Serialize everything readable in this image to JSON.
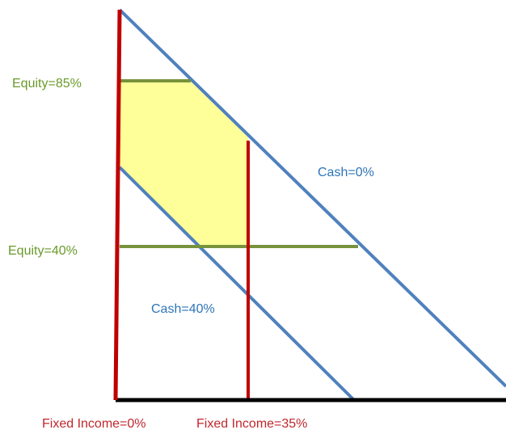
{
  "labels": {
    "equity_high": "Equity=85%",
    "equity_low": "Equity=40%",
    "cash_zero": "Cash=0%",
    "cash_forty": "Cash=40%",
    "fixed_zero": "Fixed Income=0%",
    "fixed_thirtyfive": "Fixed Income=35%"
  }
}
